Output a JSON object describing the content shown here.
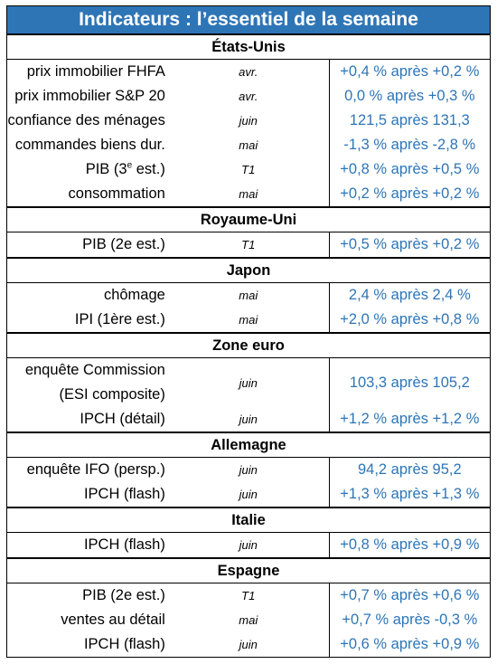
{
  "title": "Indicateurs : l’essentiel de la semaine",
  "sections": {
    "us": {
      "name": "États-Unis",
      "rows": [
        {
          "label": "prix immobilier FHFA",
          "period": "avr.",
          "value": "+0,4 % après +0,2 %"
        },
        {
          "label": "prix immobilier S&P 20",
          "period": "avr.",
          "value": "0,0 % après +0,3 %"
        },
        {
          "label": "confiance des ménages",
          "period": "juin",
          "value": "121,5 après 131,3"
        },
        {
          "label": "commandes biens dur.",
          "period": "mai",
          "value": "-1,3 % après -2,8 %"
        },
        {
          "label_pre": "PIB (3",
          "label_sup": "e",
          "label_post": " est.)",
          "period": "T1",
          "value": "+0,8 % après +0,5 %"
        },
        {
          "label": "consommation",
          "period": "mai",
          "value": "+0,2 % après +0,2 %"
        }
      ]
    },
    "uk": {
      "name": "Royaume-Uni",
      "rows": [
        {
          "label": "PIB (2e est.)",
          "period": "T1",
          "value": "+0,5 % après +0,2 %"
        }
      ]
    },
    "jp": {
      "name": "Japon",
      "rows": [
        {
          "label": "chômage",
          "period": "mai",
          "value": "2,4 % après 2,4 %"
        },
        {
          "label": "IPI (1ère est.)",
          "period": "mai",
          "value": "+2,0 % après +0,8 %"
        }
      ]
    },
    "ez": {
      "name": "Zone euro",
      "rows": [
        {
          "label_line1": "enquête Commission",
          "label_line2": "(ESI composite)",
          "period": "juin",
          "value": "103,3 après 105,2"
        },
        {
          "label": "IPCH (détail)",
          "period": "juin",
          "value": "+1,2 % après +1,2 %"
        }
      ]
    },
    "de": {
      "name": "Allemagne",
      "rows": [
        {
          "label": "enquête IFO (persp.)",
          "period": "juin",
          "value": "94,2 après 95,2"
        },
        {
          "label": "IPCH (flash)",
          "period": "juin",
          "value": "+1,3 % après +1,3 %"
        }
      ]
    },
    "it": {
      "name": "Italie",
      "rows": [
        {
          "label": "IPCH (flash)",
          "period": "juin",
          "value": "+0,8 % après +0,9 %"
        }
      ]
    },
    "es": {
      "name": "Espagne",
      "rows": [
        {
          "label": "PIB (2e est.)",
          "period": "T1",
          "value": "+0,7 % après +0,6 %"
        },
        {
          "label": "ventes au détail",
          "period": "mai",
          "value": "+0,7 % après -0,3 %"
        },
        {
          "label": "IPCH (flash)",
          "period": "juin",
          "value": "+0,6 % après +0,9 %"
        }
      ]
    }
  },
  "colors": {
    "header_bg": "#2e75b6",
    "value_text": "#2e75b6"
  }
}
